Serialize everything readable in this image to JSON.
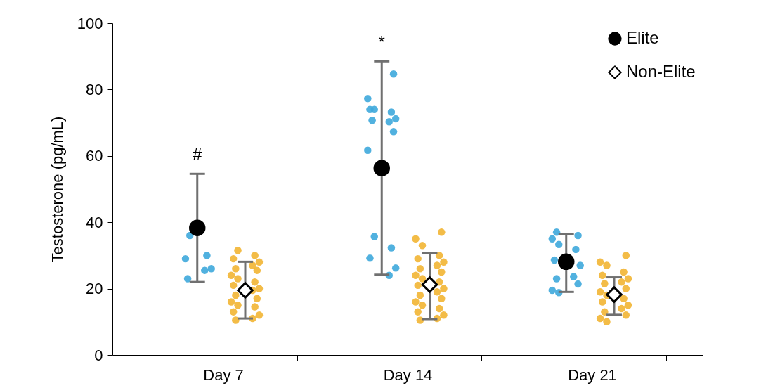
{
  "chart_data": {
    "type": "scatter",
    "ylabel": "Testosterone (pg/mL)",
    "categories": [
      "Day 7",
      "Day 14",
      "Day 21"
    ],
    "ylim": [
      0,
      100
    ],
    "yticks": [
      0,
      20,
      40,
      60,
      80,
      100
    ],
    "grid": false,
    "legend": "top right",
    "annotations": [
      "#",
      "*"
    ],
    "series": [
      {
        "type": "scatter",
        "marker": "circle",
        "color": "#3ea8dc",
        "x": [
          "Day 7",
          "Day 7",
          "Day 7",
          "Day 7",
          "Day 7",
          "Day 7",
          "Day 14",
          "Day 14",
          "Day 14",
          "Day 14",
          "Day 14",
          "Day 14",
          "Day 14",
          "Day 14",
          "Day 14",
          "Day 14",
          "Day 14",
          "Day 14",
          "Day 14",
          "Day 14",
          "Day 14",
          "Day 21",
          "Day 21",
          "Day 21",
          "Day 21",
          "Day 21",
          "Day 21",
          "Day 21",
          "Day 21",
          "Day 21",
          "Day 21",
          "Day 21",
          "Day 21"
        ],
        "values": [
          36,
          30,
          29,
          26,
          25.5,
          23,
          84.7,
          77.3,
          74,
          73.2,
          74,
          71.2,
          70.3,
          70.7,
          67.3,
          61.7,
          35.7,
          32.3,
          29.2,
          26.2,
          24,
          37,
          36,
          35,
          33.3,
          31.8,
          28.6,
          27,
          23.6,
          23,
          21.4,
          19.5,
          18.8
        ]
      },
      {
        "type": "scatter",
        "marker": "circle",
        "color": "#f2b533",
        "x": [
          "Day 7",
          "Day 7",
          "Day 7",
          "Day 7",
          "Day 7",
          "Day 7",
          "Day 7",
          "Day 7",
          "Day 7",
          "Day 7",
          "Day 7",
          "Day 7",
          "Day 7",
          "Day 7",
          "Day 7",
          "Day 7",
          "Day 7",
          "Day 7",
          "Day 7",
          "Day 7",
          "Day 7",
          "Day 7",
          "Day 14",
          "Day 14",
          "Day 14",
          "Day 14",
          "Day 14",
          "Day 14",
          "Day 14",
          "Day 14",
          "Day 14",
          "Day 14",
          "Day 14",
          "Day 14",
          "Day 14",
          "Day 14",
          "Day 14",
          "Day 14",
          "Day 14",
          "Day 14",
          "Day 14",
          "Day 14",
          "Day 14",
          "Day 14",
          "Day 14",
          "Day 14",
          "Day 21",
          "Day 21",
          "Day 21",
          "Day 21",
          "Day 21",
          "Day 21",
          "Day 21",
          "Day 21",
          "Day 21",
          "Day 21",
          "Day 21",
          "Day 21",
          "Day 21",
          "Day 21",
          "Day 21",
          "Day 21",
          "Day 21",
          "Day 21",
          "Day 21"
        ],
        "values": [
          31.5,
          30,
          29,
          28,
          27,
          26,
          25.5,
          24,
          23,
          22,
          21,
          20,
          19.5,
          18,
          17,
          16,
          15,
          14.5,
          13,
          12,
          11,
          10.5,
          37,
          35,
          33,
          30,
          29,
          28,
          27,
          26,
          25,
          24,
          23,
          22,
          21,
          20,
          19,
          18,
          17,
          16,
          15,
          14,
          13,
          12,
          11,
          10.5,
          30,
          28,
          27,
          25,
          24,
          23,
          22,
          21.5,
          20,
          19,
          18,
          17,
          16,
          15,
          14,
          13,
          12,
          11,
          10
        ]
      },
      {
        "type": "scatter",
        "name": "Elite",
        "marker": "circle",
        "color": "#000000",
        "values": [
          38.3,
          56.3,
          28.1
        ],
        "errors": [
          [
            22,
            54.6
          ],
          [
            24.2,
            88.5
          ],
          [
            19,
            36.4
          ]
        ]
      },
      {
        "type": "scatter",
        "name": "Non-Elite",
        "marker": "diamond",
        "color": "#ffffff",
        "values": [
          19.5,
          21.2,
          18.2
        ],
        "errors": [
          [
            11,
            28.1
          ],
          [
            10.8,
            30.7
          ],
          [
            12.1,
            23.4
          ]
        ]
      }
    ]
  }
}
